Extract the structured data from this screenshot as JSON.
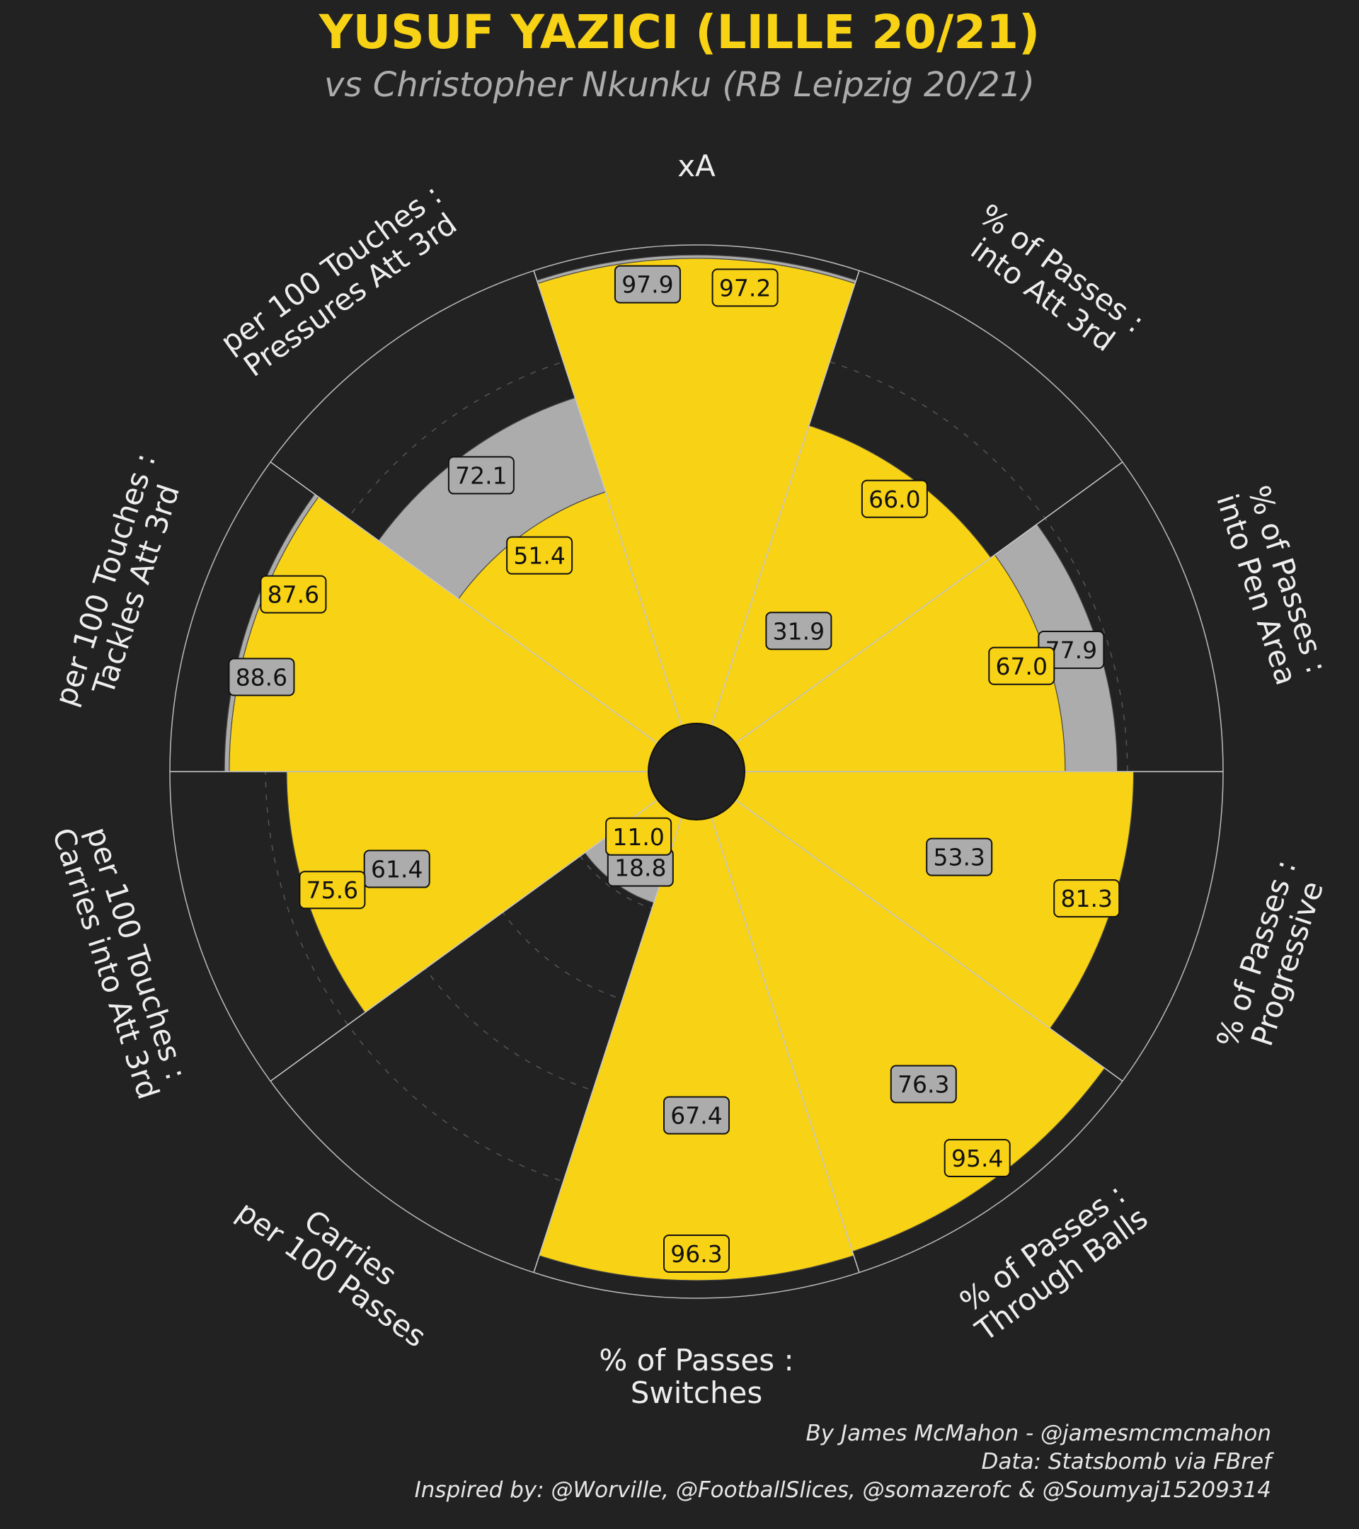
{
  "colors": {
    "background": "#222222",
    "player": "#f8d214",
    "comparison": "#acacac",
    "title": "#f8d214",
    "subtitle": "#acacac",
    "text": "#eeeeee",
    "credit": "#e6e6e6"
  },
  "chart_data": {
    "type": "pizza",
    "title": "YUSUF YAZICI (LILLE 20/21)",
    "subtitle": "vs Christopher Nkunku (RB Leipzig 20/21)",
    "rlim": [
      0,
      100
    ],
    "grid": true,
    "categories": [
      {
        "lines": [
          "xA"
        ]
      },
      {
        "lines": [
          "% of Passes :",
          "into Att 3rd"
        ]
      },
      {
        "lines": [
          "% of Passes :",
          "into Pen Area"
        ]
      },
      {
        "lines": [
          "% of Passes :",
          "Progressive"
        ]
      },
      {
        "lines": [
          "% of Passes :",
          "Through Balls"
        ]
      },
      {
        "lines": [
          "% of Passes :",
          "Switches"
        ]
      },
      {
        "lines": [
          "Carries",
          "per 100 Passes"
        ]
      },
      {
        "lines": [
          "per 100 Touches :",
          "Carries into Att 3rd"
        ]
      },
      {
        "lines": [
          "per 100 Touches :",
          "Tackles Att 3rd"
        ]
      },
      {
        "lines": [
          "per 100 Touches :",
          "Pressures Att 3rd"
        ]
      }
    ],
    "series": [
      {
        "values": [
          97.2,
          66.0,
          67.0,
          81.3,
          95.4,
          96.3,
          11.0,
          75.6,
          87.6,
          51.4
        ]
      },
      {
        "values": [
          97.9,
          31.9,
          77.9,
          53.3,
          76.3,
          67.4,
          18.8,
          61.4,
          88.6,
          72.1
        ]
      }
    ]
  },
  "credits": [
    "By James McMahon - @jamesmcmcmahon",
    "Data: Statsbomb via FBref",
    "Inspired by: @Worville, @FootballSlices, @somazerofc & @Soumyaj15209314"
  ]
}
